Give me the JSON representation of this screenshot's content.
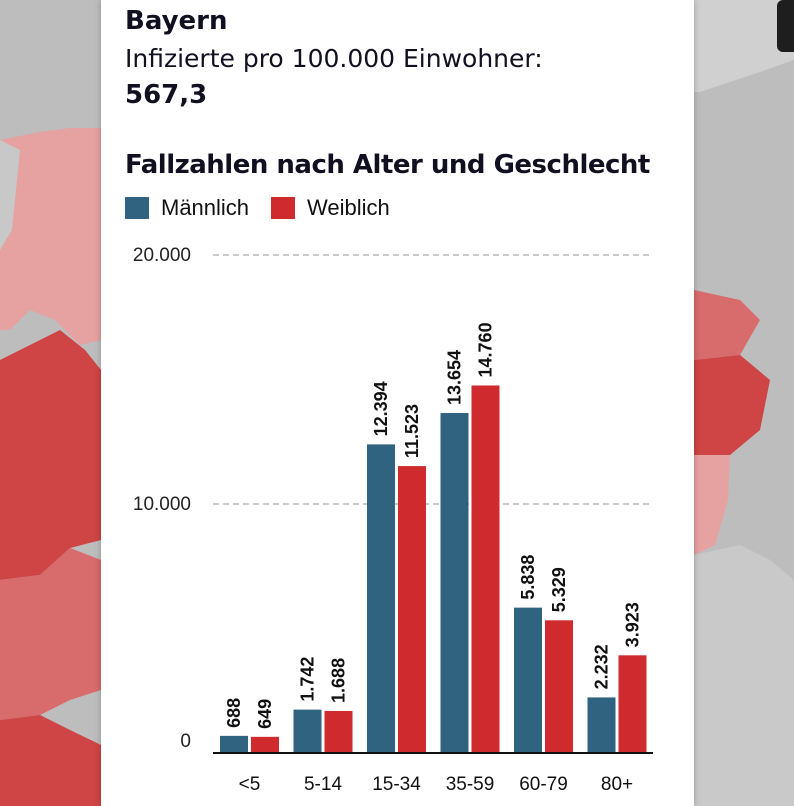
{
  "region": {
    "name": "Bayern",
    "metric_label": "Infizierte pro 100.000 Einwohner:",
    "metric_value": "567,3"
  },
  "colors": {
    "male": "#2f6380",
    "female": "#cf2a2d",
    "map_background": "#bdbdbd",
    "map_region_dark": "#cf4444",
    "map_region_medium": "#d86b6b",
    "map_region_light": "#e6a1a1"
  },
  "legend": [
    {
      "label": "Männlich",
      "color": "#2f6380"
    },
    {
      "label": "Weiblich",
      "color": "#cf2a2d"
    }
  ],
  "chart_data": {
    "type": "bar",
    "title": "Fallzahlen nach Alter und Geschlecht",
    "categories": [
      "<5",
      "5-14",
      "15-34",
      "35-59",
      "60-79",
      "80+"
    ],
    "series": [
      {
        "name": "Männlich",
        "color": "#2f6380",
        "values": [
          688,
          1742,
          12394,
          13654,
          5838,
          2232
        ],
        "labels": [
          "688",
          "1.742",
          "12.394",
          "13.654",
          "5.838",
          "2.232"
        ]
      },
      {
        "name": "Weiblich",
        "color": "#cf2a2d",
        "values": [
          649,
          1688,
          11523,
          14760,
          5329,
          3923
        ],
        "labels": [
          "649",
          "1.688",
          "11.523",
          "14.760",
          "5.329",
          "3.923"
        ]
      }
    ],
    "yticks": [
      {
        "value": 0,
        "label": "0"
      },
      {
        "value": 10000,
        "label": "10.000"
      },
      {
        "value": 20000,
        "label": "20.000"
      }
    ],
    "ylim": [
      0,
      20000
    ],
    "grid": true,
    "legend_position": "top-left",
    "xlabel": "",
    "ylabel": ""
  }
}
